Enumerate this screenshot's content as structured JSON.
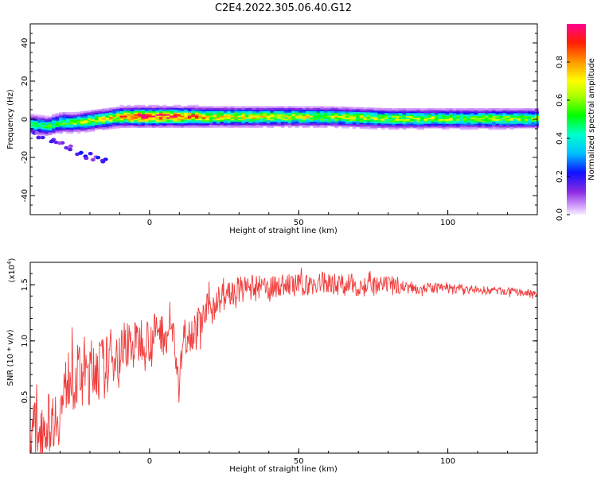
{
  "title": "C2E4.2022.305.06.40.G12",
  "chart_data": [
    {
      "type": "heatmap",
      "xlabel": "Height of straight line (km)",
      "ylabel": "Frequency (Hz)",
      "xlim": [
        -40,
        130
      ],
      "ylim": [
        -50,
        50
      ],
      "xticks": [
        "0",
        "50",
        "100"
      ],
      "yticks": [
        "40",
        "20",
        "0",
        "-20",
        "-40"
      ],
      "colorbar": {
        "label": "Normalized spectral amplitude",
        "ticks": [
          "0.0",
          "0.2",
          "0.4",
          "0.6",
          "0.8"
        ],
        "range": [
          0,
          1
        ]
      },
      "ridge": {
        "comment_free": true,
        "center_hz": [
          [
            -40,
            -3
          ],
          [
            -35,
            -4
          ],
          [
            -30,
            -2
          ],
          [
            -25,
            -2
          ],
          [
            -20,
            -1
          ],
          [
            -15,
            0
          ],
          [
            -10,
            1
          ],
          [
            0,
            1
          ],
          [
            10,
            1
          ],
          [
            20,
            1
          ],
          [
            40,
            1
          ],
          [
            60,
            1
          ],
          [
            80,
            0
          ],
          [
            100,
            0
          ],
          [
            130,
            0
          ]
        ],
        "peak_amplitude": [
          [
            -40,
            0.45
          ],
          [
            -30,
            0.5
          ],
          [
            -20,
            0.6
          ],
          [
            -10,
            0.75
          ],
          [
            -5,
            0.95
          ],
          [
            0,
            0.98
          ],
          [
            5,
            0.9
          ],
          [
            10,
            0.9
          ],
          [
            15,
            0.85
          ],
          [
            20,
            0.7
          ],
          [
            40,
            0.65
          ],
          [
            60,
            0.62
          ],
          [
            80,
            0.6
          ],
          [
            100,
            0.58
          ],
          [
            130,
            0.58
          ]
        ],
        "half_width_hz": [
          [
            -40,
            3
          ],
          [
            0,
            3
          ],
          [
            130,
            3
          ]
        ]
      },
      "scatter_branch": [
        [
          -38,
          -6
        ],
        [
          -36,
          -10
        ],
        [
          -33,
          -12
        ],
        [
          -30,
          -13
        ],
        [
          -27,
          -15
        ],
        [
          -24,
          -17
        ],
        [
          -21,
          -19
        ],
        [
          -18,
          -21
        ],
        [
          -15,
          -22
        ]
      ]
    },
    {
      "type": "line",
      "xlabel": "Height of straight line (km)",
      "ylabel": "SNR (10 * v/v)",
      "y_multiplier": "(x10",
      "y_multiplier_exp": "4",
      "y_multiplier_close": ")",
      "xlim": [
        -40,
        130
      ],
      "ylim": [
        0,
        1.7
      ],
      "xticks": [
        "0",
        "50",
        "100"
      ],
      "yticks": [
        "0.5",
        "1.0",
        "1.5"
      ],
      "color": "#f03c3c",
      "x": [
        -40,
        -35,
        -30,
        -27,
        -25,
        -22,
        -20,
        -18,
        -15,
        -12,
        -10,
        -8,
        -5,
        -2,
        0,
        3,
        5,
        8,
        9,
        10,
        11,
        12,
        15,
        18,
        20,
        25,
        30,
        35,
        40,
        45,
        50,
        55,
        60,
        65,
        70,
        75,
        80,
        85,
        90,
        95,
        100,
        105,
        110,
        115,
        120,
        125,
        130
      ],
      "y": [
        0.2,
        0.25,
        0.35,
        0.7,
        0.65,
        0.75,
        0.7,
        0.8,
        0.75,
        0.9,
        0.85,
        1.0,
        0.95,
        1.05,
        1.0,
        1.1,
        1.05,
        1.1,
        0.8,
        0.5,
        1.0,
        1.05,
        1.1,
        1.2,
        1.3,
        1.4,
        1.45,
        1.48,
        1.47,
        1.5,
        1.5,
        1.5,
        1.52,
        1.5,
        1.5,
        1.48,
        1.5,
        1.48,
        1.47,
        1.47,
        1.47,
        1.46,
        1.45,
        1.45,
        1.44,
        1.43,
        1.42
      ],
      "noise_amplitude": [
        [
          -40,
          0.25
        ],
        [
          -20,
          0.3
        ],
        [
          0,
          0.2
        ],
        [
          20,
          0.15
        ],
        [
          40,
          0.1
        ],
        [
          70,
          0.1
        ],
        [
          90,
          0.05
        ],
        [
          130,
          0.03
        ]
      ]
    }
  ]
}
